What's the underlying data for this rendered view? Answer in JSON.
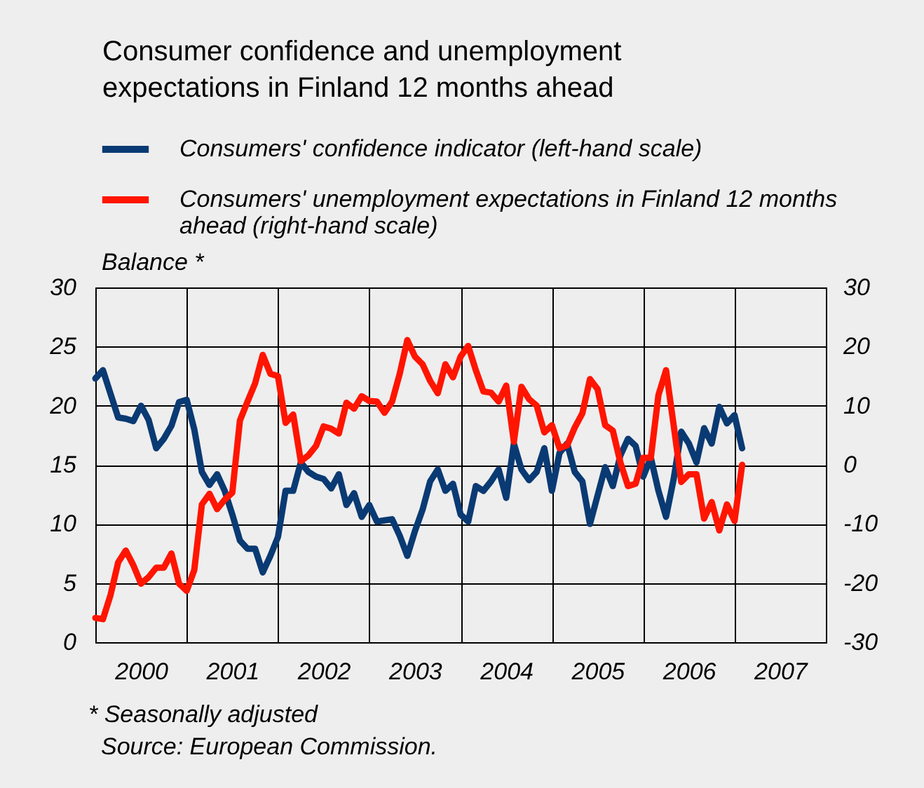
{
  "chart_data": {
    "type": "line",
    "title": "Consumer confidence and unemployment expectations in Finland 12 months ahead",
    "ylabel": "Balance *",
    "annotations": [
      "* Seasonally adjusted",
      "Source: European Commission."
    ],
    "x": [
      "2000-01",
      "2000-02",
      "2000-03",
      "2000-04",
      "2000-05",
      "2000-06",
      "2000-07",
      "2000-08",
      "2000-09",
      "2000-10",
      "2000-11",
      "2000-12",
      "2001-01",
      "2001-02",
      "2001-03",
      "2001-04",
      "2001-05",
      "2001-06",
      "2001-07",
      "2001-08",
      "2001-09",
      "2001-10",
      "2001-11",
      "2001-12",
      "2002-01",
      "2002-02",
      "2002-03",
      "2002-04",
      "2002-05",
      "2002-06",
      "2002-07",
      "2002-08",
      "2002-09",
      "2002-10",
      "2002-11",
      "2002-12",
      "2003-01",
      "2003-02",
      "2003-03",
      "2003-04",
      "2003-05",
      "2003-06",
      "2003-07",
      "2003-08",
      "2003-09",
      "2003-10",
      "2003-11",
      "2003-12",
      "2004-01",
      "2004-02",
      "2004-03",
      "2004-04",
      "2004-05",
      "2004-06",
      "2004-07",
      "2004-08",
      "2004-09",
      "2004-10",
      "2004-11",
      "2004-12",
      "2005-01",
      "2005-02",
      "2005-03",
      "2005-04",
      "2005-05",
      "2005-06",
      "2005-07",
      "2005-08",
      "2005-09",
      "2005-10",
      "2005-11",
      "2005-12",
      "2006-01",
      "2006-02",
      "2006-03",
      "2006-04",
      "2006-05",
      "2006-06",
      "2006-07",
      "2006-08",
      "2006-09",
      "2006-10",
      "2006-11",
      "2006-12",
      "2007-01",
      "2007-02"
    ],
    "xlim": [
      "2000-01",
      "2008-01"
    ],
    "xticks": [
      {
        "value": "2000-07",
        "label": "2000"
      },
      {
        "value": "2001",
        "label": null
      },
      {
        "value": "2001-07",
        "label": "2001"
      },
      {
        "value": "2002",
        "label": null
      },
      {
        "value": "2002-07",
        "label": "2002"
      },
      {
        "value": "2003",
        "label": null
      },
      {
        "value": "2003-07",
        "label": "2003"
      },
      {
        "value": "2004",
        "label": null
      },
      {
        "value": "2004-07",
        "label": "2004"
      },
      {
        "value": "2005",
        "label": null
      },
      {
        "value": "2005-07",
        "label": "2005"
      },
      {
        "value": "2006",
        "label": null
      },
      {
        "value": "2006-07",
        "label": "2006"
      },
      {
        "value": "2007",
        "label": null
      },
      {
        "value": "2007-07",
        "label": "2007"
      }
    ],
    "ylim": [
      0,
      30
    ],
    "yticks": [
      0,
      5,
      10,
      15,
      20,
      25,
      30
    ],
    "y2lim": [
      -30,
      30
    ],
    "y2ticks": [
      -30,
      -20,
      -10,
      0,
      10,
      20,
      30
    ],
    "grid": true,
    "legend": "top",
    "series": [
      {
        "name": "Consumers' confidence indicator (left-hand scale)",
        "color": "#0a3a73",
        "values": [
          22.3,
          23.0,
          21.0,
          19.0,
          18.9,
          18.7,
          20.0,
          18.8,
          16.4,
          17.2,
          18.3,
          20.3,
          20.5,
          18.0,
          14.4,
          13.3,
          14.2,
          12.8,
          10.8,
          8.6,
          7.9,
          7.9,
          5.9,
          7.3,
          8.9,
          12.8,
          12.8,
          15.2,
          14.4,
          14.0,
          13.8,
          13.0,
          14.2,
          11.6,
          12.6,
          10.6,
          11.6,
          10.2,
          10.3,
          10.4,
          9.0,
          7.3,
          9.4,
          11.2,
          13.6,
          14.6,
          12.8,
          13.4,
          10.8,
          10.2,
          13.2,
          12.8,
          13.6,
          14.6,
          12.2,
          16.8,
          14.6,
          13.7,
          14.4,
          16.4,
          12.8,
          16.0,
          16.8,
          14.4,
          13.6,
          10.0,
          12.4,
          14.8,
          13.2,
          15.8,
          17.2,
          16.6,
          14.0,
          15.6,
          12.8,
          10.6,
          13.8,
          17.8,
          16.8,
          15.2,
          18.1,
          16.8,
          19.9,
          18.5,
          19.2,
          16.4
        ]
      },
      {
        "name": "Consumers' unemployment expectations in Finland 12 months ahead (right-hand scale)",
        "color": "#ff1500",
        "axis": "y2",
        "values": [
          -25.9,
          -26.1,
          -22.0,
          -16.5,
          -14.5,
          -17.0,
          -20.1,
          -19.0,
          -17.4,
          -17.4,
          -15.0,
          -20.1,
          -21.3,
          -17.8,
          -6.7,
          -4.9,
          -7.5,
          -5.9,
          -4.7,
          7.5,
          10.7,
          13.8,
          18.6,
          15.4,
          15.0,
          7.1,
          8.5,
          0.6,
          1.6,
          3.2,
          6.5,
          6.1,
          5.3,
          10.5,
          9.5,
          11.6,
          10.8,
          10.7,
          8.8,
          10.7,
          15.4,
          21.1,
          18.3,
          17.0,
          14.2,
          12.1,
          17.0,
          14.8,
          18.3,
          20.1,
          16.0,
          12.4,
          12.2,
          10.7,
          13.4,
          3.9,
          13.2,
          11.1,
          10.0,
          5.5,
          6.7,
          2.8,
          3.3,
          6.3,
          8.7,
          14.5,
          12.8,
          6.7,
          5.8,
          0.4,
          -3.6,
          -3.2,
          1.2,
          1.2,
          11.8,
          16.0,
          6.7,
          -2.9,
          -1.6,
          -1.6,
          -9.1,
          -6.3,
          -11.1,
          -6.7,
          -9.5,
          0.0
        ]
      }
    ]
  }
}
